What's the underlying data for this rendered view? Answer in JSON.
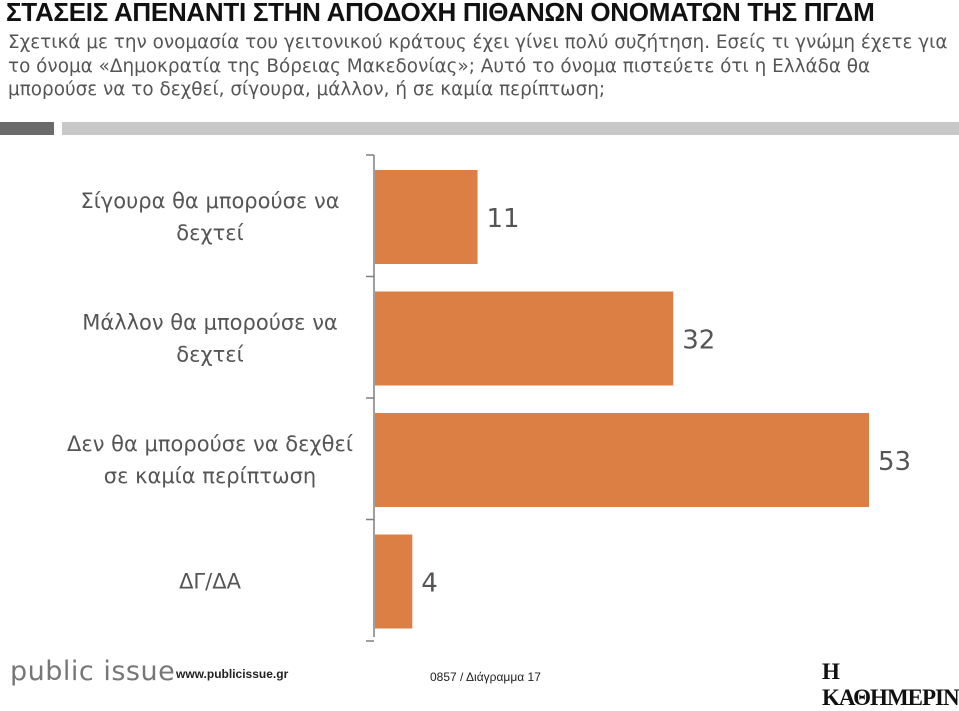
{
  "header": {
    "title": "ΣΤΑΣΕΙΣ ΑΠΕΝΑΝΤΙ ΣΤΗΝ ΑΠΟΔΟΧΗ ΠΙΘΑΝΩΝ ΟΝΟΜΑΤΩΝ ΤΗΣ ΠΓΔΜ",
    "subtitle": "Σχετικά με την ονομασία του γειτονικού κράτους έχει γίνει πολύ συζήτηση. Εσείς τι γνώμη έχετε για το όνομα «Δημοκρατία της Βόρειας Μακεδονίας»; Αυτό το όνομα πιστεύετε ότι η Ελλάδα θα μπορούσε να το δεχθεί, σίγουρα, μάλλον, ή σε καμία περίπτωση;"
  },
  "chart_data": {
    "type": "bar",
    "orientation": "horizontal",
    "categories": [
      [
        "Σίγουρα θα μπορούσε να",
        "δεχτεί"
      ],
      [
        "Μάλλον θα μπορούσε να",
        "δεχτεί"
      ],
      [
        "Δεν θα μπορούσε να δεχθεί",
        "σε καμία περίπτωση"
      ],
      [
        "ΔΓ/ΔΑ"
      ]
    ],
    "values": [
      11,
      32,
      53,
      4
    ],
    "data_labels": [
      "11",
      "32",
      "53",
      "4"
    ],
    "bar_color": "#dc7f45",
    "xlim": [
      0,
      53
    ],
    "grid": false,
    "legend": "none"
  },
  "footer": {
    "brand": "public issue",
    "url": "www.publicissue.gr",
    "code": "0857 / Διάγραμμα 17",
    "newspaper": "Η ΚΑΘΗΜΕΡΙΝΗ"
  },
  "colors": {
    "band_dark": "#6b6b6b",
    "band_light": "#c8c8c8"
  }
}
